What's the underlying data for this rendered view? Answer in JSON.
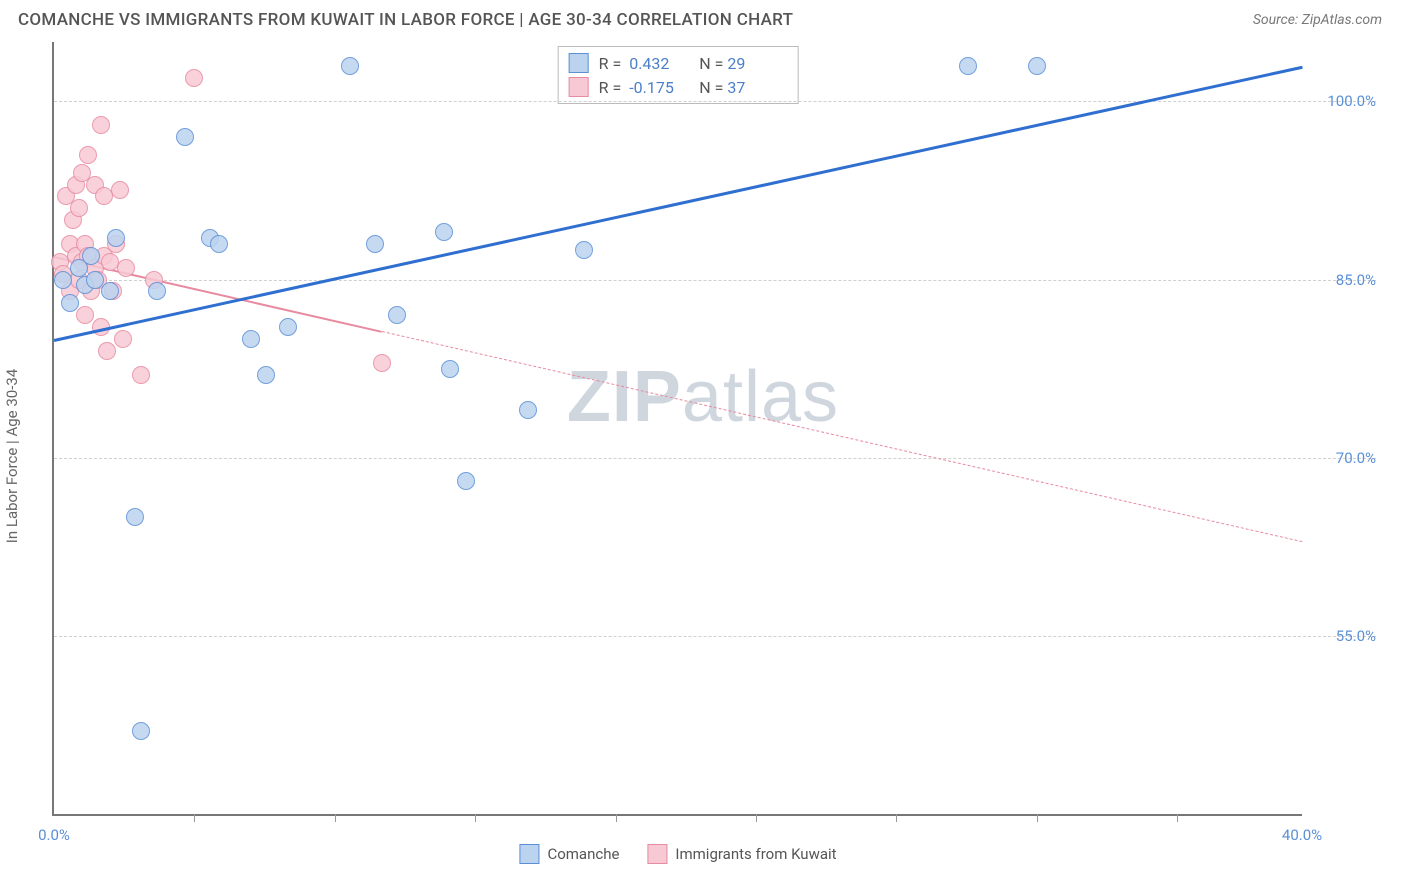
{
  "header": {
    "title": "COMANCHE VS IMMIGRANTS FROM KUWAIT IN LABOR FORCE | AGE 30-34 CORRELATION CHART",
    "source": "Source: ZipAtlas.com"
  },
  "watermark": {
    "left": "ZIP",
    "right": "atlas"
  },
  "chart": {
    "type": "scatter",
    "ylabel": "In Labor Force | Age 30-34",
    "background_color": "#ffffff",
    "grid_color": "#d0d0d0",
    "axis_color": "#777777",
    "label_color": "#5b8fd6",
    "xlim": [
      0,
      40
    ],
    "ylim": [
      40,
      105
    ],
    "x_ticks": [
      0,
      40
    ],
    "x_tick_labels": [
      "0.0%",
      "40.0%"
    ],
    "x_minor_ticks": [
      4.5,
      9,
      13.5,
      18,
      22.5,
      27,
      31.5,
      36
    ],
    "y_ticks": [
      55,
      70,
      85,
      100
    ],
    "y_tick_labels": [
      "55.0%",
      "70.0%",
      "85.0%",
      "100.0%"
    ],
    "marker_radius": 9,
    "marker_border_width": 1.5,
    "series": [
      {
        "name": "Comanche",
        "fill": "#bcd3ef",
        "stroke": "#5b8fd6",
        "R": "0.432",
        "N": "29",
        "trend": {
          "x1": 0,
          "y1": 80,
          "x2": 40,
          "y2": 103,
          "solid_until_x": 40,
          "color": "#2f6fd0",
          "width": 3
        },
        "points": [
          [
            0.3,
            85
          ],
          [
            0.5,
            83
          ],
          [
            0.8,
            86
          ],
          [
            1.0,
            84.5
          ],
          [
            1.2,
            87
          ],
          [
            1.3,
            85
          ],
          [
            1.8,
            84
          ],
          [
            2.0,
            88.5
          ],
          [
            2.6,
            65
          ],
          [
            2.8,
            47
          ],
          [
            3.3,
            84
          ],
          [
            4.2,
            97
          ],
          [
            5.0,
            88.5
          ],
          [
            5.3,
            88
          ],
          [
            6.3,
            80
          ],
          [
            6.8,
            77
          ],
          [
            7.5,
            81
          ],
          [
            9.5,
            103
          ],
          [
            10.3,
            88
          ],
          [
            11.0,
            82
          ],
          [
            12.5,
            89
          ],
          [
            12.7,
            77.5
          ],
          [
            13.2,
            68
          ],
          [
            15.2,
            74
          ],
          [
            17.0,
            87.5
          ],
          [
            29.3,
            103
          ],
          [
            31.5,
            103
          ]
        ]
      },
      {
        "name": "Immigrants from Kuwait",
        "fill": "#f7c9d4",
        "stroke": "#e88aa0",
        "R": "-0.175",
        "N": "37",
        "trend": {
          "x1": 0,
          "y1": 87,
          "x2": 40,
          "y2": 63,
          "solid_until_x": 10.5,
          "color": "#e88aa0",
          "width": 2
        },
        "points": [
          [
            0.2,
            86.5
          ],
          [
            0.3,
            85.5
          ],
          [
            0.4,
            92
          ],
          [
            0.5,
            88
          ],
          [
            0.5,
            84
          ],
          [
            0.6,
            90
          ],
          [
            0.7,
            87
          ],
          [
            0.7,
            93
          ],
          [
            0.8,
            85
          ],
          [
            0.8,
            91
          ],
          [
            0.9,
            86.5
          ],
          [
            0.9,
            94
          ],
          [
            1.0,
            88
          ],
          [
            1.0,
            82
          ],
          [
            1.1,
            87
          ],
          [
            1.1,
            95.5
          ],
          [
            1.2,
            84
          ],
          [
            1.3,
            86
          ],
          [
            1.3,
            93
          ],
          [
            1.4,
            85
          ],
          [
            1.5,
            98
          ],
          [
            1.5,
            81
          ],
          [
            1.6,
            87
          ],
          [
            1.6,
            92
          ],
          [
            1.7,
            79
          ],
          [
            1.8,
            86.5
          ],
          [
            1.9,
            84
          ],
          [
            2.0,
            88
          ],
          [
            2.1,
            92.5
          ],
          [
            2.2,
            80
          ],
          [
            2.3,
            86
          ],
          [
            2.8,
            77
          ],
          [
            3.2,
            85
          ],
          [
            4.5,
            102
          ],
          [
            10.5,
            78
          ]
        ]
      }
    ],
    "legend_bottom": [
      {
        "label": "Comanche",
        "fill": "#bcd3ef",
        "stroke": "#5b8fd6"
      },
      {
        "label": "Immigrants from Kuwait",
        "fill": "#f7c9d4",
        "stroke": "#e88aa0"
      }
    ]
  }
}
